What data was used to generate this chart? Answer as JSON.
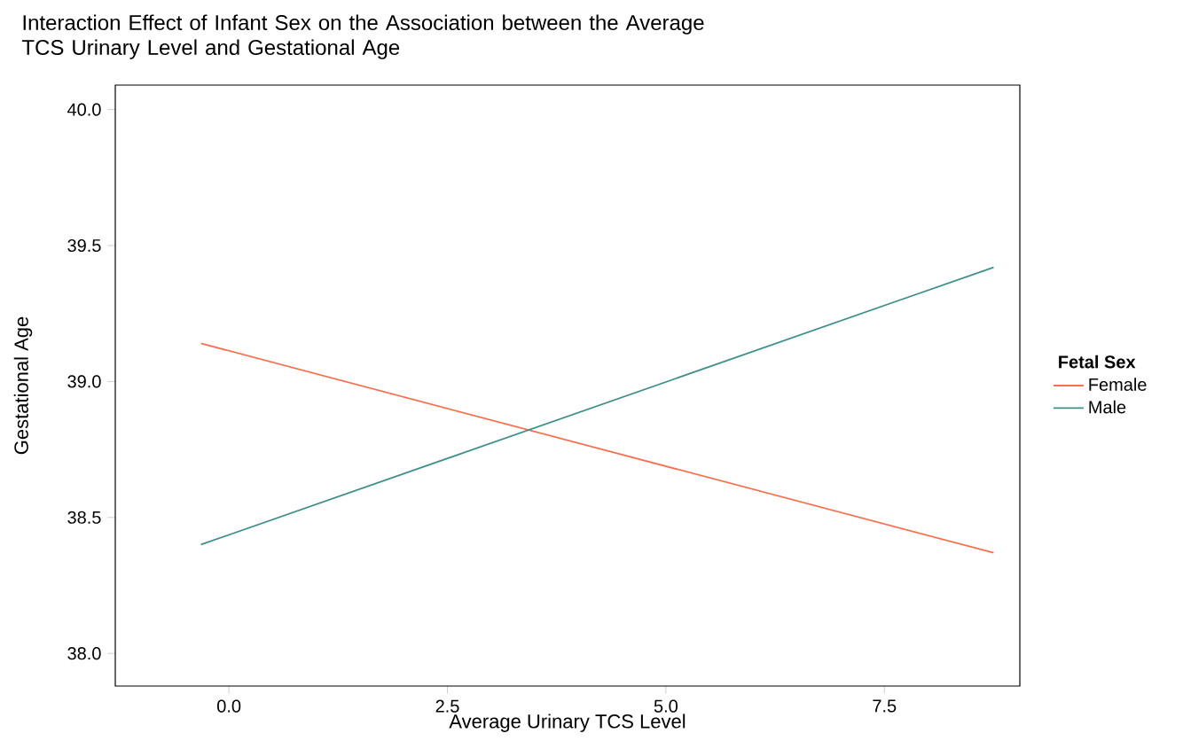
{
  "chart_data": {
    "type": "line",
    "title": "Interaction Effect of Infant Sex on the Association between the Average TCS Urinary Level and Gestational Age",
    "xlabel": "Average Urinary TCS Level",
    "ylabel": "Gestational Age",
    "legend_title": "Fetal Sex",
    "x": [
      -0.32,
      8.75
    ],
    "series": [
      {
        "name": "Female",
        "color": "#f8704f",
        "values": [
          39.14,
          38.37
        ]
      },
      {
        "name": "Male",
        "color": "#3f8f8a",
        "values": [
          38.4,
          39.42
        ]
      }
    ],
    "xlim": [
      -1.3,
      9.05
    ],
    "ylim": [
      37.88,
      40.09
    ],
    "xticks": [
      {
        "value": 0,
        "label": "0.0"
      },
      {
        "value": 2.5,
        "label": "2.5"
      },
      {
        "value": 5,
        "label": "5.0"
      },
      {
        "value": 7.5,
        "label": "7.5"
      }
    ],
    "yticks": [
      {
        "value": 38,
        "label": "38.0"
      },
      {
        "value": 38.5,
        "label": "38.5"
      },
      {
        "value": 39,
        "label": "39.0"
      },
      {
        "value": 39.5,
        "label": "39.5"
      },
      {
        "value": 40,
        "label": "40.0"
      }
    ],
    "grid": false,
    "legend": "right",
    "marker": "none",
    "line_style": "solid"
  }
}
